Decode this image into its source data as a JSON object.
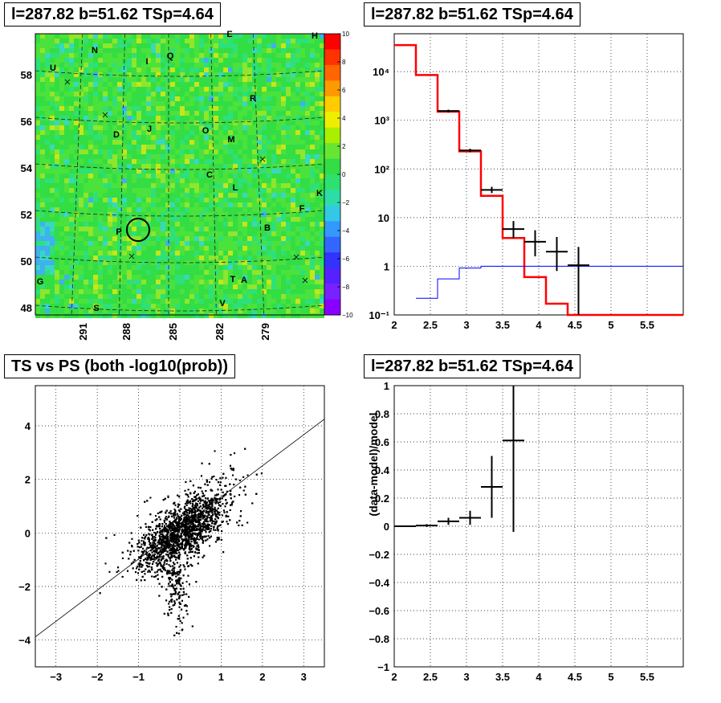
{
  "chart_data": [
    {
      "panel": "sky-map",
      "type": "heatmap",
      "title": "l=287.82 b=51.62 TSp=4.64",
      "x_ticks": [
        "291",
        "288",
        "285",
        "282",
        "279"
      ],
      "y_ticks": [
        "48",
        "50",
        "52",
        "54",
        "56",
        "58"
      ],
      "colorbar_ticks": [
        "10",
        "8",
        "6",
        "4",
        "2",
        "0",
        "−2",
        "−4",
        "−6",
        "−8",
        "−10"
      ],
      "colorbar_range": [
        -10,
        10
      ],
      "source_labels": [
        "E",
        "H",
        "N",
        "U",
        "I",
        "Q",
        "R",
        "D",
        "J",
        "O",
        "M",
        "C",
        "L",
        "K",
        "F",
        "P",
        "B",
        "T",
        "A",
        "G",
        "S",
        "V"
      ],
      "circle_marker": {
        "l": 287.82,
        "b": 51.62
      },
      "grid": true
    },
    {
      "panel": "spectrum",
      "type": "line",
      "title": "l=287.82 b=51.62 TSp=4.64",
      "x_ticks": [
        "2",
        "2.5",
        "3",
        "3.5",
        "4",
        "4.5",
        "5",
        "5.5"
      ],
      "xlim": [
        2,
        6
      ],
      "y_ticks": [
        "10⁻¹",
        "1",
        "10",
        "10²",
        "10³",
        "10⁴"
      ],
      "ylim": [
        0.1,
        60000
      ],
      "yscale": "log",
      "grid": true,
      "series": [
        {
          "color": "#ff0000",
          "edges": [
            2.0,
            2.3,
            2.6,
            2.9,
            3.2,
            3.5,
            3.8,
            4.1,
            4.4,
            6.0
          ],
          "values": [
            35000,
            8500,
            1500,
            230,
            28,
            3.8,
            0.6,
            0.17,
            0.1
          ]
        },
        {
          "color": "#0000ff",
          "edges": [
            2.3,
            2.6,
            2.9,
            3.2,
            3.5,
            3.8,
            4.1,
            4.4,
            6.0
          ],
          "values": [
            0.22,
            0.55,
            0.92,
            1.0,
            1.0,
            1.0,
            1.0,
            1.0
          ]
        },
        {
          "color": "#000000",
          "kind": "errorbars",
          "points": [
            {
              "x": 2.75,
              "y": 1550,
              "xerr": 0.15,
              "ylo": 1450,
              "yhi": 1650
            },
            {
              "x": 3.05,
              "y": 240,
              "xerr": 0.15,
              "ylo": 220,
              "yhi": 260
            },
            {
              "x": 3.35,
              "y": 37,
              "xerr": 0.15,
              "ylo": 32,
              "yhi": 43
            },
            {
              "x": 3.65,
              "y": 5.8,
              "xerr": 0.15,
              "ylo": 3.8,
              "yhi": 8.5
            },
            {
              "x": 3.95,
              "y": 3.2,
              "xerr": 0.15,
              "ylo": 1.6,
              "yhi": 5.5
            },
            {
              "x": 4.25,
              "y": 2.0,
              "xerr": 0.15,
              "ylo": 0.8,
              "yhi": 4.0
            },
            {
              "x": 4.55,
              "y": 1.05,
              "xerr": 0.15,
              "ylo": 0.1,
              "yhi": 2.5
            }
          ]
        }
      ]
    },
    {
      "panel": "scatter",
      "type": "scatter",
      "title": "TS vs PS (both -log10(prob))",
      "x_ticks": [
        "−3",
        "−2",
        "−1",
        "0",
        "1",
        "2",
        "3"
      ],
      "xlim": [
        -3.5,
        3.5
      ],
      "y_ticks": [
        "−4",
        "−2",
        "0",
        "2",
        "4"
      ],
      "ylim": [
        -5,
        5.5
      ],
      "grid": true,
      "fit_line": {
        "x1": -3.5,
        "y1": -3.88,
        "x2": 3.5,
        "y2": 4.25
      }
    },
    {
      "panel": "residuals",
      "type": "scatter",
      "title": "l=287.82 b=51.62 TSp=4.64",
      "ylabel": "(data-model)/model",
      "x_ticks": [
        "2",
        "2.5",
        "3",
        "3.5",
        "4",
        "4.5",
        "5",
        "5.5"
      ],
      "xlim": [
        2,
        6
      ],
      "y_ticks": [
        "−1",
        "−0.8",
        "−0.6",
        "−0.4",
        "−0.2",
        "0",
        "0.2",
        "0.4",
        "0.6",
        "0.8",
        "1"
      ],
      "ylim": [
        -1,
        1
      ],
      "grid": true,
      "points": [
        {
          "x": 2.15,
          "y": 0.0,
          "xerr": 0.15,
          "err": 0.004
        },
        {
          "x": 2.45,
          "y": 0.005,
          "xerr": 0.15,
          "err": 0.01
        },
        {
          "x": 2.75,
          "y": 0.035,
          "xerr": 0.15,
          "err": 0.025
        },
        {
          "x": 3.05,
          "y": 0.06,
          "xerr": 0.15,
          "err": 0.05
        },
        {
          "x": 3.35,
          "y": 0.28,
          "xerr": 0.15,
          "err": 0.22
        },
        {
          "x": 3.65,
          "y": 0.61,
          "xerr": 0.15,
          "err": 0.65
        }
      ]
    }
  ]
}
